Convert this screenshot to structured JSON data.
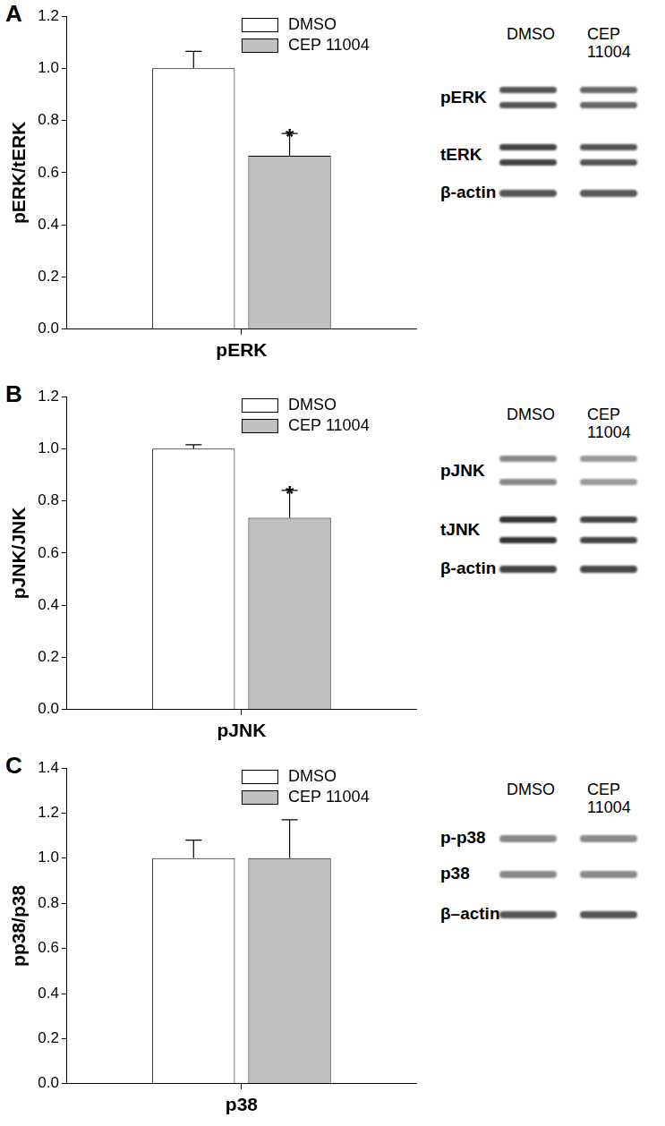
{
  "panels": [
    {
      "label": "A",
      "blot": {
        "lanes": [
          "DMSO",
          "CEP 11004"
        ],
        "rows": [
          "pERK",
          "tERK",
          "β-actin"
        ]
      }
    },
    {
      "label": "B",
      "blot": {
        "lanes": [
          "DMSO",
          "CEP 11004"
        ],
        "rows": [
          "pJNK",
          "tJNK",
          "β-actin"
        ]
      }
    },
    {
      "label": "C",
      "blot": {
        "lanes": [
          "DMSO",
          "CEP 11004"
        ],
        "rows": [
          "p-p38",
          "p38",
          "β–actin"
        ]
      }
    }
  ],
  "chart_data": [
    {
      "type": "bar",
      "categories": [
        "pERK"
      ],
      "y_label": "pERK/tERK",
      "series": [
        {
          "name": "DMSO",
          "color": "#ffffff",
          "values": [
            1.0
          ],
          "errors": [
            0.065
          ]
        },
        {
          "name": "CEP 11004",
          "color": "#c0c0c0",
          "values": [
            0.665
          ],
          "errors": [
            0.085
          ]
        }
      ],
      "ylim": [
        0,
        1.2
      ],
      "yticks": [
        {
          "value": 0,
          "label": "0.0"
        },
        0.2,
        0.4,
        0.6,
        0.8,
        {
          "value": 1,
          "label": "1.0"
        },
        1.2
      ],
      "grid": false,
      "legend": "top right",
      "annotations": [
        {
          "text": "*",
          "series": "CEP 11004",
          "category": "pERK"
        }
      ]
    },
    {
      "type": "bar",
      "categories": [
        "pJNK"
      ],
      "y_label": "pJNK/JNK",
      "series": [
        {
          "name": "DMSO",
          "color": "#ffffff",
          "values": [
            1.0
          ],
          "errors": [
            0.015
          ]
        },
        {
          "name": "CEP 11004",
          "color": "#c0c0c0",
          "values": [
            0.735
          ],
          "errors": [
            0.105
          ]
        }
      ],
      "ylim": [
        0,
        1.2
      ],
      "yticks": [
        {
          "value": 0,
          "label": "0.0"
        },
        0.2,
        0.4,
        0.6,
        0.8,
        {
          "value": 1,
          "label": "1.0"
        },
        1.2
      ],
      "grid": false,
      "legend": "top right",
      "annotations": [
        {
          "text": "*",
          "series": "CEP 11004",
          "category": "pJNK"
        }
      ]
    },
    {
      "type": "bar",
      "categories": [
        "p38"
      ],
      "y_label": "pp38/p38",
      "series": [
        {
          "name": "DMSO",
          "color": "#ffffff",
          "values": [
            1.0
          ],
          "errors": [
            0.08
          ]
        },
        {
          "name": "CEP 11004",
          "color": "#c0c0c0",
          "values": [
            1.0
          ],
          "errors": [
            0.17
          ]
        }
      ],
      "ylim": [
        0,
        1.4
      ],
      "yticks": [
        {
          "value": 0,
          "label": "0.0"
        },
        0.2,
        0.4,
        0.6,
        0.8,
        {
          "value": 1,
          "label": "1.0"
        },
        1.2,
        1.4
      ],
      "grid": false,
      "legend": "top right",
      "annotations": []
    }
  ]
}
